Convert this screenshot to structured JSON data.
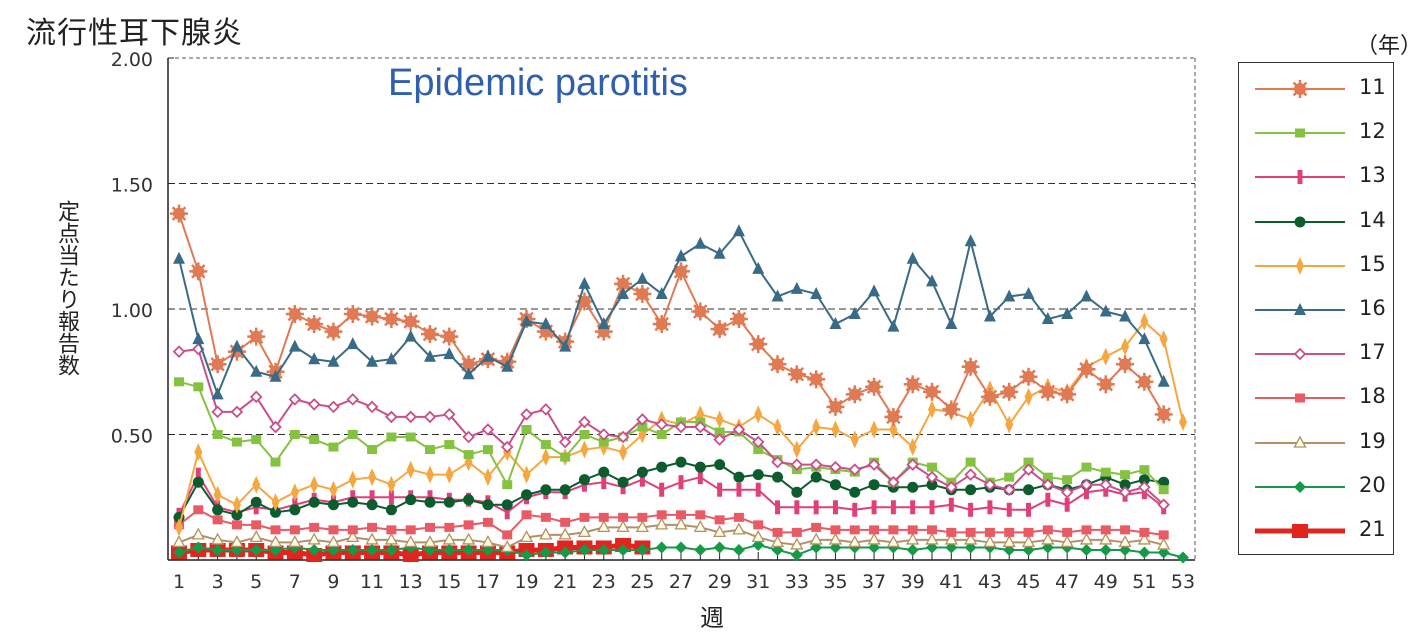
{
  "chart_data": {
    "type": "line",
    "title": "流行性耳下腺炎",
    "subtitle": "Epidemic parotitis",
    "xlabel": "週",
    "ylabel": "定点当たり報告数",
    "legend_title": "（年）",
    "legend_position": "right",
    "grid": "horizontal-dashed",
    "xlim": [
      1,
      53
    ],
    "ylim": [
      0,
      2.0
    ],
    "yticks": [
      "0.50",
      "1.00",
      "1.50",
      "2.00"
    ],
    "ytick_values": [
      0.5,
      1.0,
      1.5,
      2.0
    ],
    "xticks": [
      1,
      3,
      5,
      7,
      9,
      11,
      13,
      15,
      17,
      19,
      21,
      23,
      25,
      27,
      29,
      31,
      33,
      35,
      37,
      39,
      41,
      43,
      45,
      47,
      49,
      51,
      53
    ],
    "series": [
      {
        "name": "11",
        "color": "#e07a55",
        "marker": "asterisk",
        "values": [
          1.38,
          1.15,
          0.78,
          0.83,
          0.89,
          0.75,
          0.98,
          0.94,
          0.91,
          0.98,
          0.97,
          0.96,
          0.95,
          0.9,
          0.89,
          0.78,
          0.8,
          0.79,
          0.96,
          0.91,
          0.87,
          1.03,
          0.91,
          1.1,
          1.06,
          0.94,
          1.15,
          0.99,
          0.92,
          0.96,
          0.86,
          0.78,
          0.74,
          0.72,
          0.61,
          0.66,
          0.69,
          0.57,
          0.7,
          0.67,
          0.6,
          0.77,
          0.65,
          0.67,
          0.73,
          0.67,
          0.66,
          0.76,
          0.7,
          0.78,
          0.71,
          0.58
        ]
      },
      {
        "name": "12",
        "color": "#86c242",
        "marker": "square",
        "values": [
          0.71,
          0.69,
          0.5,
          0.47,
          0.48,
          0.39,
          0.5,
          0.48,
          0.45,
          0.5,
          0.44,
          0.49,
          0.49,
          0.44,
          0.46,
          0.42,
          0.44,
          0.3,
          0.52,
          0.46,
          0.41,
          0.5,
          0.47,
          0.49,
          0.53,
          0.5,
          0.55,
          0.55,
          0.51,
          0.51,
          0.44,
          0.4,
          0.36,
          0.37,
          0.36,
          0.35,
          0.39,
          0.31,
          0.39,
          0.37,
          0.31,
          0.39,
          0.31,
          0.33,
          0.39,
          0.33,
          0.32,
          0.37,
          0.35,
          0.34,
          0.36,
          0.28
        ]
      },
      {
        "name": "13",
        "color": "#e0407a",
        "marker": "bar",
        "values": [
          0.18,
          0.34,
          0.21,
          0.19,
          0.21,
          0.2,
          0.22,
          0.24,
          0.23,
          0.25,
          0.25,
          0.25,
          0.25,
          0.25,
          0.24,
          0.24,
          0.23,
          0.19,
          0.25,
          0.27,
          0.27,
          0.3,
          0.31,
          0.29,
          0.32,
          0.28,
          0.31,
          0.33,
          0.28,
          0.28,
          0.28,
          0.21,
          0.21,
          0.21,
          0.21,
          0.2,
          0.21,
          0.21,
          0.21,
          0.21,
          0.22,
          0.2,
          0.21,
          0.2,
          0.2,
          0.24,
          0.22,
          0.27,
          0.28,
          0.26,
          0.27,
          0.21
        ]
      },
      {
        "name": "14",
        "color": "#0d5c2e",
        "marker": "circle",
        "values": [
          0.17,
          0.31,
          0.2,
          0.18,
          0.23,
          0.19,
          0.2,
          0.23,
          0.22,
          0.23,
          0.22,
          0.2,
          0.24,
          0.23,
          0.23,
          0.24,
          0.22,
          0.22,
          0.26,
          0.28,
          0.28,
          0.32,
          0.35,
          0.31,
          0.35,
          0.37,
          0.39,
          0.37,
          0.38,
          0.33,
          0.34,
          0.33,
          0.27,
          0.33,
          0.3,
          0.27,
          0.3,
          0.29,
          0.29,
          0.3,
          0.28,
          0.28,
          0.29,
          0.28,
          0.28,
          0.3,
          0.28,
          0.3,
          0.33,
          0.3,
          0.32,
          0.31
        ]
      },
      {
        "name": "15",
        "color": "#f5a742",
        "marker": "diamond-thin",
        "values": [
          0.13,
          0.43,
          0.26,
          0.22,
          0.3,
          0.23,
          0.27,
          0.3,
          0.28,
          0.32,
          0.33,
          0.3,
          0.36,
          0.34,
          0.34,
          0.39,
          0.33,
          0.43,
          0.34,
          0.41,
          0.41,
          0.44,
          0.45,
          0.43,
          0.5,
          0.56,
          0.54,
          0.58,
          0.56,
          0.53,
          0.58,
          0.53,
          0.44,
          0.53,
          0.52,
          0.48,
          0.52,
          0.52,
          0.45,
          0.6,
          0.59,
          0.56,
          0.68,
          0.54,
          0.65,
          0.69,
          0.67,
          0.77,
          0.81,
          0.85,
          0.95,
          0.88,
          0.55
        ]
      },
      {
        "name": "16",
        "color": "#3a6b86",
        "marker": "triangle",
        "values": [
          1.2,
          0.88,
          0.66,
          0.85,
          0.75,
          0.73,
          0.85,
          0.8,
          0.79,
          0.86,
          0.79,
          0.8,
          0.89,
          0.81,
          0.82,
          0.74,
          0.81,
          0.77,
          0.95,
          0.94,
          0.85,
          1.1,
          0.94,
          1.06,
          1.12,
          1.06,
          1.21,
          1.26,
          1.22,
          1.31,
          1.16,
          1.05,
          1.08,
          1.06,
          0.94,
          0.98,
          1.07,
          0.93,
          1.2,
          1.11,
          0.94,
          1.27,
          0.97,
          1.05,
          1.06,
          0.96,
          0.98,
          1.05,
          0.99,
          0.97,
          0.88,
          0.71
        ]
      },
      {
        "name": "17",
        "color": "#c9508a",
        "marker": "open-diamond",
        "values": [
          0.83,
          0.84,
          0.59,
          0.59,
          0.65,
          0.53,
          0.64,
          0.62,
          0.61,
          0.64,
          0.61,
          0.57,
          0.57,
          0.57,
          0.58,
          0.49,
          0.52,
          0.45,
          0.58,
          0.6,
          0.47,
          0.55,
          0.5,
          0.49,
          0.56,
          0.54,
          0.53,
          0.53,
          0.48,
          0.52,
          0.47,
          0.39,
          0.38,
          0.38,
          0.37,
          0.36,
          0.38,
          0.31,
          0.38,
          0.33,
          0.29,
          0.34,
          0.3,
          0.28,
          0.36,
          0.3,
          0.27,
          0.3,
          0.3,
          0.27,
          0.29,
          0.22
        ]
      },
      {
        "name": "18",
        "color": "#e85a64",
        "marker": "square",
        "values": [
          0.14,
          0.2,
          0.16,
          0.14,
          0.14,
          0.12,
          0.12,
          0.13,
          0.12,
          0.12,
          0.13,
          0.12,
          0.12,
          0.13,
          0.13,
          0.14,
          0.15,
          0.1,
          0.18,
          0.17,
          0.15,
          0.17,
          0.17,
          0.17,
          0.17,
          0.18,
          0.18,
          0.18,
          0.16,
          0.17,
          0.14,
          0.11,
          0.11,
          0.13,
          0.12,
          0.12,
          0.12,
          0.12,
          0.12,
          0.12,
          0.11,
          0.11,
          0.11,
          0.11,
          0.11,
          0.12,
          0.11,
          0.12,
          0.12,
          0.12,
          0.11,
          0.1
        ]
      },
      {
        "name": "19",
        "color": "#b09266",
        "marker": "open-triangle",
        "values": [
          0.07,
          0.1,
          0.08,
          0.07,
          0.09,
          0.07,
          0.07,
          0.08,
          0.07,
          0.09,
          0.08,
          0.08,
          0.07,
          0.07,
          0.08,
          0.08,
          0.07,
          0.05,
          0.09,
          0.1,
          0.1,
          0.11,
          0.13,
          0.13,
          0.13,
          0.14,
          0.14,
          0.13,
          0.11,
          0.12,
          0.09,
          0.07,
          0.06,
          0.08,
          0.08,
          0.07,
          0.08,
          0.07,
          0.08,
          0.08,
          0.08,
          0.08,
          0.07,
          0.07,
          0.07,
          0.08,
          0.07,
          0.08,
          0.08,
          0.07,
          0.08,
          0.06
        ]
      },
      {
        "name": "20",
        "color": "#169a4a",
        "marker": "diamond",
        "values": [
          0.03,
          0.05,
          0.04,
          0.04,
          0.04,
          0.04,
          0.05,
          0.04,
          0.04,
          0.04,
          0.04,
          0.04,
          0.05,
          0.04,
          0.04,
          0.04,
          0.04,
          0.04,
          0.02,
          0.03,
          0.03,
          0.04,
          0.04,
          0.04,
          0.04,
          0.05,
          0.05,
          0.04,
          0.05,
          0.04,
          0.06,
          0.04,
          0.02,
          0.05,
          0.05,
          0.05,
          0.05,
          0.05,
          0.04,
          0.05,
          0.05,
          0.05,
          0.05,
          0.04,
          0.04,
          0.05,
          0.05,
          0.04,
          0.04,
          0.04,
          0.03,
          0.03,
          0.01
        ]
      },
      {
        "name": "21",
        "color": "#e0251e",
        "marker": "big-square",
        "values": [
          0.03,
          0.04,
          0.04,
          0.04,
          0.04,
          0.03,
          0.03,
          0.02,
          0.03,
          0.03,
          0.03,
          0.03,
          0.02,
          0.03,
          0.03,
          0.03,
          0.03,
          0.03,
          0.04,
          0.04,
          0.05,
          0.05,
          0.05,
          0.06,
          0.05
        ]
      }
    ]
  }
}
